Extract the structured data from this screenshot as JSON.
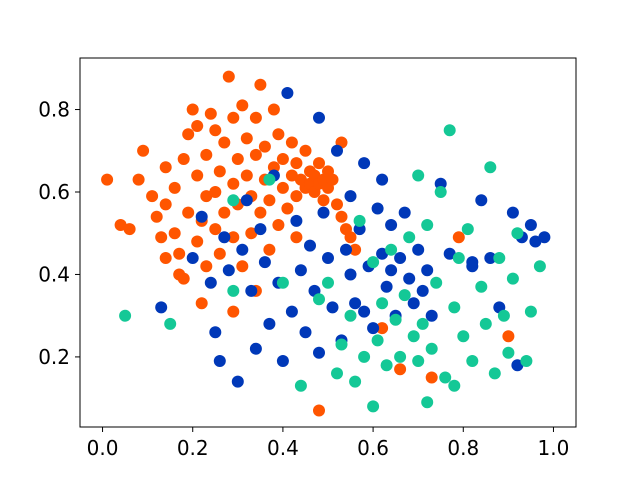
{
  "chart_data": {
    "type": "scatter",
    "title": "",
    "xlabel": "",
    "ylabel": "",
    "xlim": [
      -0.05,
      1.05
    ],
    "ylim": [
      0.03,
      0.925
    ],
    "x_ticks": [
      0.0,
      0.2,
      0.4,
      0.6,
      0.8,
      1.0
    ],
    "x_tick_labels": [
      "0.0",
      "0.2",
      "0.4",
      "0.6",
      "0.8",
      "1.0"
    ],
    "y_ticks": [
      0.2,
      0.4,
      0.6,
      0.8
    ],
    "y_tick_labels": [
      "0.2",
      "0.4",
      "0.6",
      "0.8"
    ],
    "grid": false,
    "legend": "none",
    "series": [
      {
        "color": "#ff5500",
        "points": [
          [
            0.01,
            0.63
          ],
          [
            0.04,
            0.52
          ],
          [
            0.06,
            0.51
          ],
          [
            0.08,
            0.63
          ],
          [
            0.09,
            0.7
          ],
          [
            0.11,
            0.59
          ],
          [
            0.12,
            0.54
          ],
          [
            0.13,
            0.49
          ],
          [
            0.14,
            0.44
          ],
          [
            0.14,
            0.57
          ],
          [
            0.14,
            0.66
          ],
          [
            0.16,
            0.5
          ],
          [
            0.16,
            0.61
          ],
          [
            0.17,
            0.4
          ],
          [
            0.17,
            0.45
          ],
          [
            0.18,
            0.39
          ],
          [
            0.18,
            0.68
          ],
          [
            0.19,
            0.55
          ],
          [
            0.19,
            0.74
          ],
          [
            0.2,
            0.8
          ],
          [
            0.21,
            0.48
          ],
          [
            0.21,
            0.64
          ],
          [
            0.21,
            0.76
          ],
          [
            0.22,
            0.53
          ],
          [
            0.22,
            0.33
          ],
          [
            0.23,
            0.42
          ],
          [
            0.23,
            0.59
          ],
          [
            0.23,
            0.69
          ],
          [
            0.24,
            0.79
          ],
          [
            0.25,
            0.51
          ],
          [
            0.25,
            0.6
          ],
          [
            0.25,
            0.75
          ],
          [
            0.26,
            0.45
          ],
          [
            0.26,
            0.65
          ],
          [
            0.27,
            0.55
          ],
          [
            0.27,
            0.72
          ],
          [
            0.28,
            0.88
          ],
          [
            0.29,
            0.49
          ],
          [
            0.29,
            0.62
          ],
          [
            0.29,
            0.78
          ],
          [
            0.3,
            0.57
          ],
          [
            0.3,
            0.68
          ],
          [
            0.31,
            0.42
          ],
          [
            0.31,
            0.81
          ],
          [
            0.32,
            0.64
          ],
          [
            0.32,
            0.73
          ],
          [
            0.33,
            0.5
          ],
          [
            0.33,
            0.59
          ],
          [
            0.34,
            0.69
          ],
          [
            0.34,
            0.78
          ],
          [
            0.35,
            0.86
          ],
          [
            0.35,
            0.55
          ],
          [
            0.36,
            0.63
          ],
          [
            0.36,
            0.71
          ],
          [
            0.37,
            0.46
          ],
          [
            0.37,
            0.58
          ],
          [
            0.38,
            0.66
          ],
          [
            0.38,
            0.8
          ],
          [
            0.39,
            0.52
          ],
          [
            0.39,
            0.74
          ],
          [
            0.4,
            0.61
          ],
          [
            0.4,
            0.68
          ],
          [
            0.41,
            0.56
          ],
          [
            0.42,
            0.64
          ],
          [
            0.42,
            0.72
          ],
          [
            0.43,
            0.59
          ],
          [
            0.43,
            0.67
          ],
          [
            0.44,
            0.63
          ],
          [
            0.45,
            0.61
          ],
          [
            0.45,
            0.7
          ],
          [
            0.46,
            0.62
          ],
          [
            0.46,
            0.65
          ],
          [
            0.47,
            0.6
          ],
          [
            0.47,
            0.64
          ],
          [
            0.48,
            0.62
          ],
          [
            0.48,
            0.67
          ],
          [
            0.49,
            0.58
          ],
          [
            0.49,
            0.63
          ],
          [
            0.5,
            0.65
          ],
          [
            0.5,
            0.61
          ],
          [
            0.51,
            0.63
          ],
          [
            0.52,
            0.57
          ],
          [
            0.53,
            0.54
          ],
          [
            0.54,
            0.51
          ],
          [
            0.55,
            0.49
          ],
          [
            0.56,
            0.46
          ],
          [
            0.48,
            0.07
          ],
          [
            0.62,
            0.27
          ],
          [
            0.66,
            0.17
          ],
          [
            0.73,
            0.15
          ],
          [
            0.79,
            0.49
          ],
          [
            0.9,
            0.25
          ],
          [
            0.34,
            0.36
          ],
          [
            0.29,
            0.31
          ],
          [
            0.43,
            0.49
          ],
          [
            0.53,
            0.72
          ]
        ]
      },
      {
        "color": "#0038b8",
        "points": [
          [
            0.13,
            0.32
          ],
          [
            0.2,
            0.44
          ],
          [
            0.22,
            0.54
          ],
          [
            0.24,
            0.38
          ],
          [
            0.25,
            0.26
          ],
          [
            0.26,
            0.19
          ],
          [
            0.27,
            0.49
          ],
          [
            0.28,
            0.41
          ],
          [
            0.3,
            0.14
          ],
          [
            0.31,
            0.46
          ],
          [
            0.32,
            0.58
          ],
          [
            0.33,
            0.36
          ],
          [
            0.34,
            0.22
          ],
          [
            0.35,
            0.51
          ],
          [
            0.36,
            0.43
          ],
          [
            0.37,
            0.28
          ],
          [
            0.38,
            0.64
          ],
          [
            0.39,
            0.38
          ],
          [
            0.4,
            0.19
          ],
          [
            0.41,
            0.84
          ],
          [
            0.42,
            0.31
          ],
          [
            0.43,
            0.53
          ],
          [
            0.44,
            0.41
          ],
          [
            0.45,
            0.26
          ],
          [
            0.46,
            0.47
          ],
          [
            0.47,
            0.36
          ],
          [
            0.48,
            0.21
          ],
          [
            0.48,
            0.78
          ],
          [
            0.49,
            0.55
          ],
          [
            0.5,
            0.44
          ],
          [
            0.51,
            0.32
          ],
          [
            0.52,
            0.7
          ],
          [
            0.53,
            0.24
          ],
          [
            0.54,
            0.46
          ],
          [
            0.55,
            0.4
          ],
          [
            0.55,
            0.59
          ],
          [
            0.56,
            0.33
          ],
          [
            0.57,
            0.51
          ],
          [
            0.58,
            0.67
          ],
          [
            0.59,
            0.42
          ],
          [
            0.6,
            0.27
          ],
          [
            0.61,
            0.56
          ],
          [
            0.62,
            0.45
          ],
          [
            0.62,
            0.63
          ],
          [
            0.63,
            0.37
          ],
          [
            0.64,
            0.52
          ],
          [
            0.65,
            0.3
          ],
          [
            0.66,
            0.44
          ],
          [
            0.67,
            0.55
          ],
          [
            0.68,
            0.39
          ],
          [
            0.69,
            0.33
          ],
          [
            0.7,
            0.46
          ],
          [
            0.71,
            0.36
          ],
          [
            0.72,
            0.41
          ],
          [
            0.73,
            0.3
          ],
          [
            0.75,
            0.62
          ],
          [
            0.77,
            0.45
          ],
          [
            0.82,
            0.43
          ],
          [
            0.84,
            0.58
          ],
          [
            0.86,
            0.44
          ],
          [
            0.88,
            0.32
          ],
          [
            0.91,
            0.55
          ],
          [
            0.93,
            0.49
          ],
          [
            0.95,
            0.52
          ],
          [
            0.96,
            0.48
          ],
          [
            0.98,
            0.49
          ],
          [
            0.92,
            0.18
          ],
          [
            0.82,
            0.42
          ],
          [
            0.64,
            0.41
          ],
          [
            0.58,
            0.31
          ]
        ]
      },
      {
        "color": "#14c896",
        "points": [
          [
            0.05,
            0.3
          ],
          [
            0.15,
            0.28
          ],
          [
            0.29,
            0.36
          ],
          [
            0.29,
            0.58
          ],
          [
            0.37,
            0.63
          ],
          [
            0.4,
            0.38
          ],
          [
            0.44,
            0.13
          ],
          [
            0.48,
            0.34
          ],
          [
            0.5,
            0.38
          ],
          [
            0.52,
            0.16
          ],
          [
            0.53,
            0.23
          ],
          [
            0.55,
            0.3
          ],
          [
            0.56,
            0.14
          ],
          [
            0.57,
            0.53
          ],
          [
            0.58,
            0.2
          ],
          [
            0.6,
            0.08
          ],
          [
            0.61,
            0.24
          ],
          [
            0.63,
            0.18
          ],
          [
            0.64,
            0.46
          ],
          [
            0.65,
            0.29
          ],
          [
            0.66,
            0.2
          ],
          [
            0.67,
            0.35
          ],
          [
            0.68,
            0.49
          ],
          [
            0.69,
            0.25
          ],
          [
            0.7,
            0.64
          ],
          [
            0.71,
            0.28
          ],
          [
            0.72,
            0.09
          ],
          [
            0.72,
            0.52
          ],
          [
            0.73,
            0.22
          ],
          [
            0.74,
            0.38
          ],
          [
            0.75,
            0.6
          ],
          [
            0.76,
            0.15
          ],
          [
            0.77,
            0.75
          ],
          [
            0.78,
            0.32
          ],
          [
            0.79,
            0.44
          ],
          [
            0.8,
            0.25
          ],
          [
            0.81,
            0.51
          ],
          [
            0.82,
            0.19
          ],
          [
            0.84,
            0.37
          ],
          [
            0.85,
            0.28
          ],
          [
            0.86,
            0.66
          ],
          [
            0.87,
            0.16
          ],
          [
            0.88,
            0.44
          ],
          [
            0.89,
            0.3
          ],
          [
            0.9,
            0.21
          ],
          [
            0.91,
            0.39
          ],
          [
            0.92,
            0.5
          ],
          [
            0.94,
            0.19
          ],
          [
            0.95,
            0.31
          ],
          [
            0.97,
            0.42
          ],
          [
            0.78,
            0.13
          ],
          [
            0.7,
            0.19
          ],
          [
            0.62,
            0.33
          ],
          [
            0.6,
            0.43
          ]
        ]
      }
    ]
  }
}
